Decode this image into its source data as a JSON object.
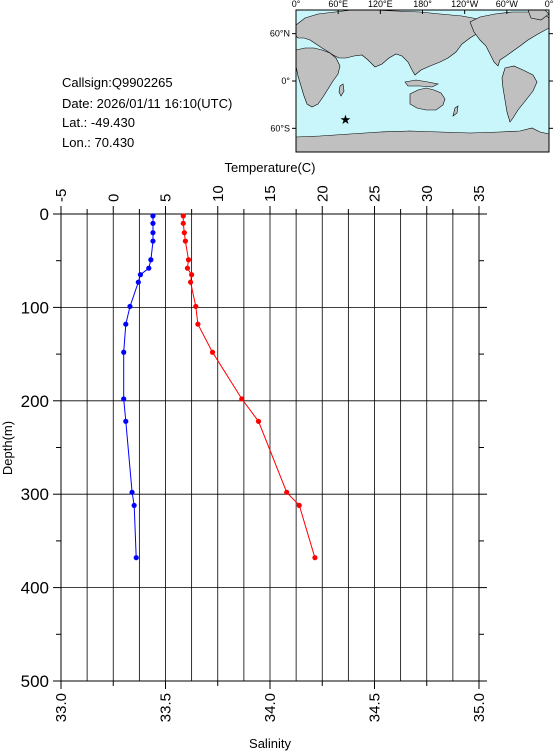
{
  "info": {
    "callsign": "Callsign:Q9902265",
    "date": "Date:  2026/01/11 16:10(UTC)",
    "lat": "Lat.:  -49.430",
    "lon": "Lon.:  70.430"
  },
  "map": {
    "lon_labels": [
      "0°",
      "60°E",
      "120°E",
      "180°",
      "120°W",
      "60°W",
      "0°"
    ],
    "lat_labels": [
      "60°N",
      "0°",
      "60°S"
    ],
    "station": {
      "lon": 70.43,
      "lat": -49.43
    },
    "colors": {
      "ocean": "#c8f6fa",
      "land": "#c0c0c0",
      "marker": "#ff0000"
    }
  },
  "chart_data": {
    "type": "line",
    "title": "",
    "ylabel": "Depth(m)",
    "top_xlabel": "Temperature(C)",
    "bottom_xlabel": "Salinity",
    "depth_range": [
      0,
      500
    ],
    "depth_ticks": [
      "0",
      "100",
      "200",
      "300",
      "400",
      "500"
    ],
    "temperature_range": [
      -5,
      35
    ],
    "temperature_ticks": [
      "-5",
      "0",
      "5",
      "10",
      "15",
      "20",
      "25",
      "30",
      "35"
    ],
    "salinity_range": [
      33.0,
      35.0
    ],
    "salinity_ticks": [
      "33.0",
      "33.5",
      "34.0",
      "34.5",
      "35.0"
    ],
    "grid": true,
    "series": [
      {
        "color": "#ff0000",
        "axis": "temperature",
        "points": [
          {
            "depth": 2,
            "value": 6.7
          },
          {
            "depth": 10,
            "value": 6.7
          },
          {
            "depth": 20,
            "value": 6.8
          },
          {
            "depth": 29,
            "value": 6.9
          },
          {
            "depth": 49,
            "value": 7.2
          },
          {
            "depth": 58,
            "value": 7.1
          },
          {
            "depth": 65,
            "value": 7.5
          },
          {
            "depth": 73,
            "value": 7.4
          },
          {
            "depth": 99,
            "value": 7.9
          },
          {
            "depth": 118,
            "value": 8.1
          },
          {
            "depth": 148,
            "value": 9.5
          },
          {
            "depth": 198,
            "value": 12.3
          },
          {
            "depth": 222,
            "value": 13.9
          },
          {
            "depth": 298,
            "value": 16.6
          },
          {
            "depth": 312,
            "value": 17.8
          },
          {
            "depth": 368,
            "value": 19.3
          }
        ]
      },
      {
        "color": "#0000ff",
        "axis": "salinity",
        "points": [
          {
            "depth": 2,
            "value": 33.44
          },
          {
            "depth": 10,
            "value": 33.44
          },
          {
            "depth": 20,
            "value": 33.44
          },
          {
            "depth": 29,
            "value": 33.44
          },
          {
            "depth": 49,
            "value": 33.43
          },
          {
            "depth": 58,
            "value": 33.42
          },
          {
            "depth": 65,
            "value": 33.38
          },
          {
            "depth": 73,
            "value": 33.37
          },
          {
            "depth": 99,
            "value": 33.33
          },
          {
            "depth": 118,
            "value": 33.31
          },
          {
            "depth": 148,
            "value": 33.3
          },
          {
            "depth": 198,
            "value": 33.3
          },
          {
            "depth": 222,
            "value": 33.31
          },
          {
            "depth": 298,
            "value": 33.34
          },
          {
            "depth": 312,
            "value": 33.35
          },
          {
            "depth": 368,
            "value": 33.36
          }
        ]
      }
    ]
  }
}
